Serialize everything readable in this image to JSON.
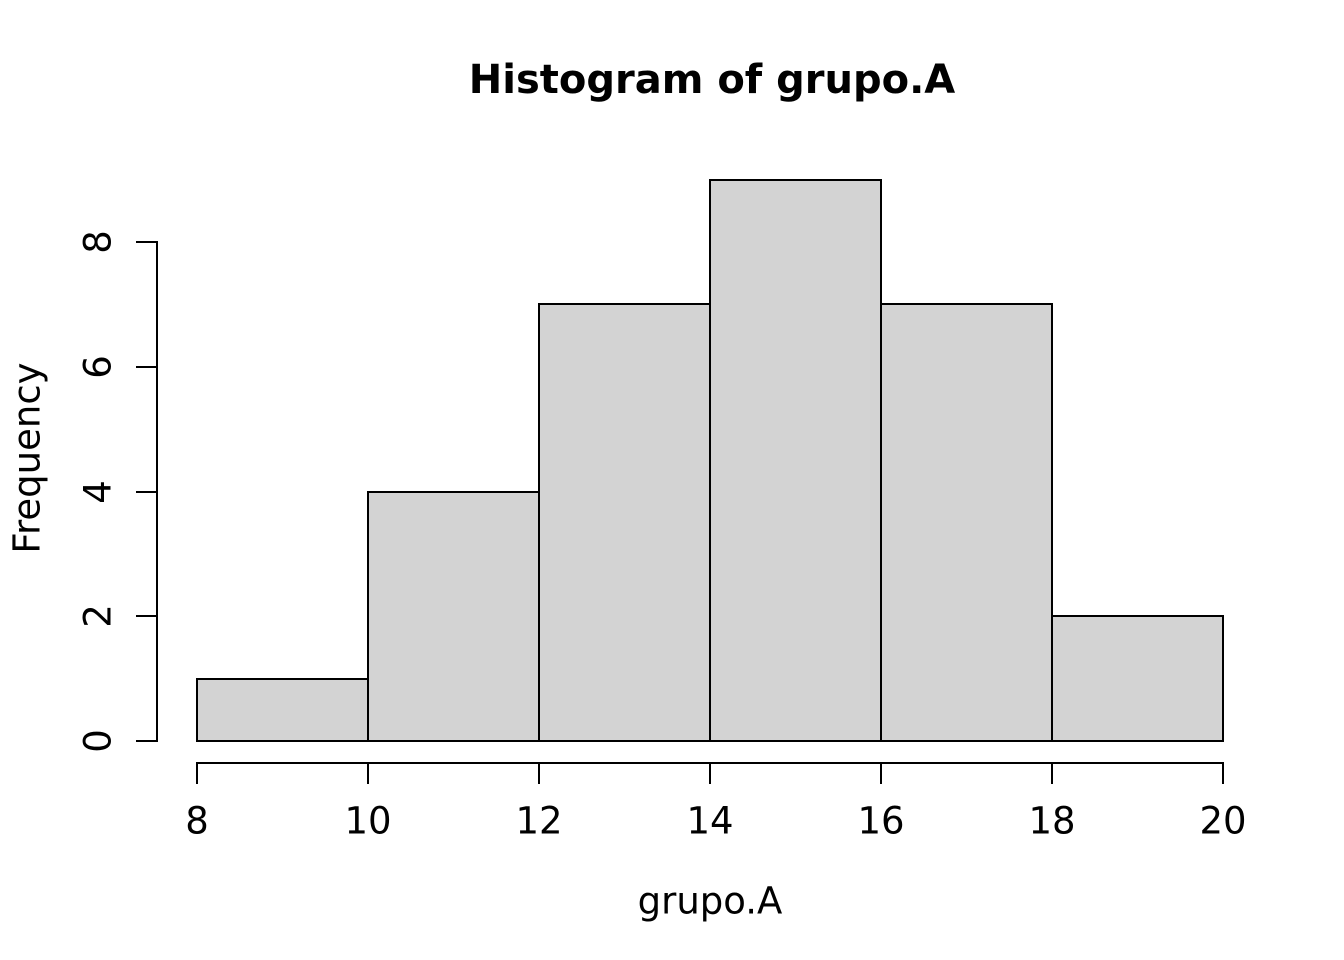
{
  "chart_data": {
    "type": "bar",
    "subtype": "histogram",
    "title": "Histogram of grupo.A",
    "xlabel": "grupo.A",
    "ylabel": "Frequency",
    "bin_edges": [
      8,
      10,
      12,
      14,
      16,
      18,
      20
    ],
    "counts": [
      1,
      4,
      7,
      9,
      7,
      2
    ],
    "x_ticks": [
      "8",
      "10",
      "12",
      "14",
      "16",
      "18",
      "20"
    ],
    "x_tick_values": [
      8,
      10,
      12,
      14,
      16,
      18,
      20
    ],
    "y_ticks": [
      "0",
      "2",
      "4",
      "6",
      "8"
    ],
    "y_tick_values": [
      0,
      2,
      4,
      6,
      8
    ],
    "xlim": [
      8,
      20
    ],
    "ylim": [
      0,
      8
    ],
    "grid": "off",
    "legend": "none",
    "colors": {
      "bar_fill": "#d3d3d3",
      "bar_border": "#000000",
      "axis": "#000000",
      "text": "#000000",
      "background": "#ffffff"
    }
  }
}
